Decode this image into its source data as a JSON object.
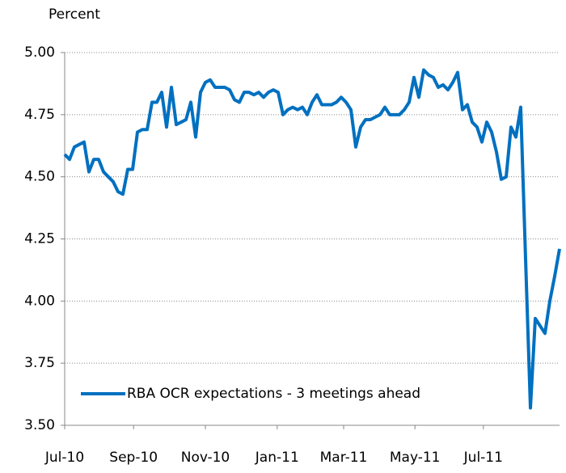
{
  "chart_data": {
    "type": "line",
    "y_axis_label": "Percent",
    "series": [
      {
        "name": "RBA OCR expectations - 3 meetings ahead",
        "color": "#0070c0",
        "values": [
          4.59,
          4.57,
          4.62,
          4.63,
          4.64,
          4.52,
          4.57,
          4.57,
          4.52,
          4.5,
          4.48,
          4.44,
          4.43,
          4.53,
          4.53,
          4.68,
          4.69,
          4.69,
          4.8,
          4.8,
          4.84,
          4.7,
          4.86,
          4.71,
          4.72,
          4.73,
          4.8,
          4.66,
          4.84,
          4.88,
          4.89,
          4.86,
          4.86,
          4.86,
          4.85,
          4.81,
          4.8,
          4.84,
          4.84,
          4.83,
          4.84,
          4.82,
          4.84,
          4.85,
          4.84,
          4.75,
          4.77,
          4.78,
          4.77,
          4.78,
          4.75,
          4.8,
          4.83,
          4.79,
          4.79,
          4.79,
          4.8,
          4.82,
          4.8,
          4.77,
          4.62,
          4.7,
          4.73,
          4.73,
          4.74,
          4.75,
          4.78,
          4.75,
          4.75,
          4.75,
          4.77,
          4.8,
          4.9,
          4.82,
          4.93,
          4.91,
          4.9,
          4.86,
          4.87,
          4.85,
          4.88,
          4.92,
          4.77,
          4.79,
          4.72,
          4.7,
          4.64,
          4.72,
          4.68,
          4.6,
          4.49,
          4.5,
          4.7,
          4.66,
          4.78,
          4.17,
          3.57,
          3.93,
          3.9,
          3.87,
          4.0,
          4.1,
          4.21
        ]
      }
    ],
    "xlim": [
      0,
      102
    ],
    "xticks": [
      {
        "value": 0,
        "label": "Jul-10"
      },
      {
        "value": 14.2,
        "label": "Sep-10"
      },
      {
        "value": 29,
        "label": "Nov-10"
      },
      {
        "value": 43.8,
        "label": "Jan-11"
      },
      {
        "value": 57.5,
        "label": "Mar-11"
      },
      {
        "value": 72.2,
        "label": "May-11"
      },
      {
        "value": 86.3,
        "label": "Jul-11"
      }
    ],
    "ylim": [
      3.5,
      5.0
    ],
    "yticks": [
      {
        "value": 3.5,
        "label": "3.50"
      },
      {
        "value": 3.75,
        "label": "3.75"
      },
      {
        "value": 4.0,
        "label": "4.00"
      },
      {
        "value": 4.25,
        "label": "4.25"
      },
      {
        "value": 4.5,
        "label": "4.50"
      },
      {
        "value": 4.75,
        "label": "4.75"
      },
      {
        "value": 5.0,
        "label": "5.00"
      }
    ],
    "grid": true,
    "legend": "lower left"
  }
}
